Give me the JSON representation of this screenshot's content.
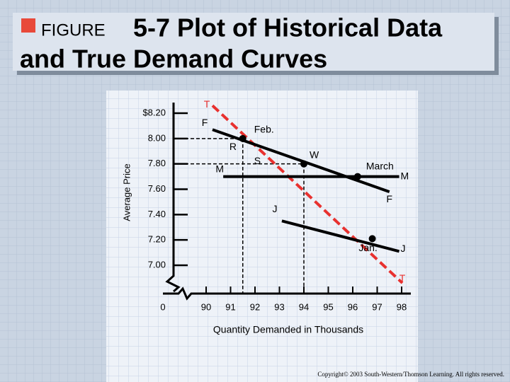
{
  "chart_data": {
    "type": "line",
    "figure_label": "FIGURE",
    "title_lines": [
      "5-7 Plot of Historical Data",
      "and True Demand Curves"
    ],
    "y_label": "Average Price",
    "x_label": "Quantity Demanded in Thousands",
    "origin_label": "0",
    "xlim": [
      90,
      98
    ],
    "xticks": [
      90,
      91,
      92,
      93,
      94,
      95,
      96,
      97,
      98
    ],
    "ylim": [
      7.0,
      8.2
    ],
    "yticks": [
      {
        "value": 8.2,
        "label": "$8.20"
      },
      {
        "value": 8.0,
        "label": "8.00"
      },
      {
        "value": 7.8,
        "label": "7.80"
      },
      {
        "value": 7.6,
        "label": "7.60"
      },
      {
        "value": 7.4,
        "label": "7.40"
      },
      {
        "value": 7.2,
        "label": "7.20"
      },
      {
        "value": 7.0,
        "label": "7.00"
      }
    ],
    "series": [
      {
        "end_labels": [
          "T",
          "T"
        ],
        "color": "#e8312f",
        "dashed": true,
        "x": [
          90.26,
          98.03
        ],
        "values": [
          8.26,
          6.86
        ]
      },
      {
        "end_labels": [
          "F",
          "F"
        ],
        "color": "#000000",
        "dashed": false,
        "x": [
          90.26,
          97.5
        ],
        "values": [
          8.07,
          7.58
        ]
      },
      {
        "end_labels": [
          "M",
          "M"
        ],
        "color": "#000000",
        "dashed": false,
        "x": [
          90.7,
          97.9
        ],
        "values": [
          7.7,
          7.7
        ]
      },
      {
        "end_labels": [
          "J",
          "J"
        ],
        "color": "#000000",
        "dashed": false,
        "x": [
          93.1,
          97.9
        ],
        "values": [
          7.35,
          7.11
        ]
      }
    ],
    "points": [
      {
        "label": "Feb.",
        "x": 91.5,
        "y": 8.0,
        "guides": true
      },
      {
        "label": "W",
        "x": 94.0,
        "y": 7.8,
        "guides": true
      },
      {
        "label": "March",
        "x": 96.2,
        "y": 7.7,
        "guides": false
      },
      {
        "label": "Jan.",
        "x": 96.8,
        "y": 7.21,
        "guides": false
      }
    ],
    "annotations": [
      {
        "text": "R",
        "x": 91.1,
        "y": 7.93
      },
      {
        "text": "S",
        "x": 92.1,
        "y": 7.82
      }
    ],
    "copyright": "Copyright© 2003 South-Western/Thomson Learning. All rights reserved."
  }
}
